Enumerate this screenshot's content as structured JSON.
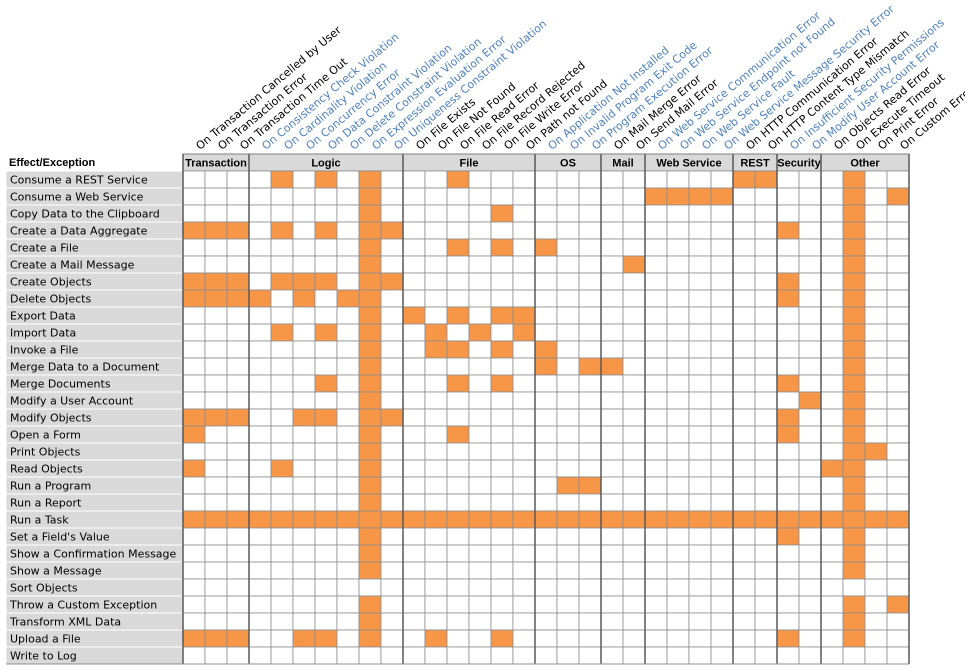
{
  "corner": "Effect/Exception",
  "cell_color": "#f79646",
  "groups": [
    {
      "name": "Transaction",
      "columns": [
        {
          "label": "On Transaction Cancelled by User",
          "color": "#000000"
        },
        {
          "label": "On Transaction Error",
          "color": "#000000"
        },
        {
          "label": "On Transaction Time Out",
          "color": "#000000"
        }
      ]
    },
    {
      "name": "Logic",
      "columns": [
        {
          "label": "On Consistency Check Violation",
          "color": "#4f81bd"
        },
        {
          "label": "On Cardinality Violation",
          "color": "#4f81bd"
        },
        {
          "label": "On Concurrency Error",
          "color": "#4f81bd"
        },
        {
          "label": "On Data Constraint Violation",
          "color": "#4f81bd"
        },
        {
          "label": "On Delete Constraint Violation",
          "color": "#4f81bd"
        },
        {
          "label": "On Expression Evaluation Error",
          "color": "#4f81bd"
        },
        {
          "label": "On Uniqueness Constraint Violation",
          "color": "#4f81bd"
        }
      ]
    },
    {
      "name": "File",
      "columns": [
        {
          "label": "On File Exists",
          "color": "#000000"
        },
        {
          "label": "On File Not Found",
          "color": "#000000"
        },
        {
          "label": "On File Read Error",
          "color": "#000000"
        },
        {
          "label": "On File Record Rejected",
          "color": "#000000"
        },
        {
          "label": "On File Write Error",
          "color": "#000000"
        },
        {
          "label": "On Path not Found",
          "color": "#000000"
        }
      ]
    },
    {
      "name": "OS",
      "columns": [
        {
          "label": "On Application Not Installed",
          "color": "#4f81bd"
        },
        {
          "label": "On Invalid Program Exit Code",
          "color": "#4f81bd"
        },
        {
          "label": "On Program Execution Error",
          "color": "#4f81bd"
        }
      ]
    },
    {
      "name": "Mail",
      "columns": [
        {
          "label": "On Mail Merge Error",
          "color": "#000000"
        },
        {
          "label": "On Send Mail Error",
          "color": "#000000"
        }
      ]
    },
    {
      "name": "Web Service",
      "columns": [
        {
          "label": "On Web Service Communication Error",
          "color": "#4f81bd"
        },
        {
          "label": "On Web Service Endpoint not Found",
          "color": "#4f81bd"
        },
        {
          "label": "On Web Service Fault",
          "color": "#4f81bd"
        },
        {
          "label": "On Web Service Message Security Error",
          "color": "#4f81bd"
        }
      ]
    },
    {
      "name": "REST",
      "columns": [
        {
          "label": "On HTTP Communication Error",
          "color": "#000000"
        },
        {
          "label": "On HTTP Content Type Mismatch",
          "color": "#000000"
        }
      ]
    },
    {
      "name": "Security",
      "columns": [
        {
          "label": "On Insufficient Security Permissions",
          "color": "#4f81bd"
        },
        {
          "label": "On Modify User Account Error",
          "color": "#4f81bd"
        }
      ]
    },
    {
      "name": "Other",
      "columns": [
        {
          "label": "On Objects Read Error",
          "color": "#000000"
        },
        {
          "label": "On Execute Timeout",
          "color": "#000000"
        },
        {
          "label": "On Print Error",
          "color": "#000000"
        },
        {
          "label": "On Custom Error",
          "color": "#000000"
        }
      ]
    }
  ],
  "rows": [
    {
      "label": "Consume a REST Service",
      "cells": [
        0,
        0,
        0,
        0,
        1,
        0,
        1,
        0,
        1,
        0,
        0,
        0,
        1,
        0,
        0,
        0,
        0,
        0,
        0,
        0,
        0,
        0,
        0,
        0,
        0,
        1,
        1,
        0,
        0,
        0,
        1,
        0,
        0
      ]
    },
    {
      "label": "Consume a Web Service",
      "cells": [
        0,
        0,
        0,
        0,
        0,
        0,
        0,
        0,
        1,
        0,
        0,
        0,
        0,
        0,
        0,
        0,
        0,
        0,
        0,
        0,
        0,
        1,
        1,
        1,
        1,
        0,
        0,
        0,
        0,
        0,
        1,
        0,
        1
      ]
    },
    {
      "label": "Copy Data to the Clipboard",
      "cells": [
        0,
        0,
        0,
        0,
        0,
        0,
        0,
        0,
        1,
        0,
        0,
        0,
        0,
        0,
        1,
        0,
        0,
        0,
        0,
        0,
        0,
        0,
        0,
        0,
        0,
        0,
        0,
        0,
        0,
        0,
        1,
        0,
        0
      ]
    },
    {
      "label": "Create a Data Aggregate",
      "cells": [
        1,
        1,
        1,
        0,
        1,
        0,
        1,
        0,
        1,
        1,
        0,
        0,
        0,
        0,
        0,
        0,
        0,
        0,
        0,
        0,
        0,
        0,
        0,
        0,
        0,
        0,
        0,
        1,
        0,
        0,
        1,
        0,
        0
      ]
    },
    {
      "label": "Create a File",
      "cells": [
        0,
        0,
        0,
        0,
        0,
        0,
        0,
        0,
        1,
        0,
        0,
        0,
        1,
        0,
        1,
        0,
        1,
        0,
        0,
        0,
        0,
        0,
        0,
        0,
        0,
        0,
        0,
        0,
        0,
        0,
        1,
        0,
        0
      ]
    },
    {
      "label": "Create a Mail Message",
      "cells": [
        0,
        0,
        0,
        0,
        0,
        0,
        0,
        0,
        1,
        0,
        0,
        0,
        0,
        0,
        0,
        0,
        0,
        0,
        0,
        0,
        1,
        0,
        0,
        0,
        0,
        0,
        0,
        0,
        0,
        0,
        1,
        0,
        0
      ]
    },
    {
      "label": "Create Objects",
      "cells": [
        1,
        1,
        1,
        0,
        1,
        1,
        1,
        0,
        1,
        1,
        0,
        0,
        0,
        0,
        0,
        0,
        0,
        0,
        0,
        0,
        0,
        0,
        0,
        0,
        0,
        0,
        0,
        1,
        0,
        0,
        1,
        0,
        0
      ]
    },
    {
      "label": "Delete Objects",
      "cells": [
        1,
        1,
        1,
        1,
        0,
        1,
        0,
        1,
        1,
        0,
        0,
        0,
        0,
        0,
        0,
        0,
        0,
        0,
        0,
        0,
        0,
        0,
        0,
        0,
        0,
        0,
        0,
        1,
        0,
        0,
        1,
        0,
        0
      ]
    },
    {
      "label": "Export Data",
      "cells": [
        0,
        0,
        0,
        0,
        0,
        0,
        0,
        0,
        1,
        0,
        1,
        0,
        1,
        0,
        1,
        1,
        0,
        0,
        0,
        0,
        0,
        0,
        0,
        0,
        0,
        0,
        0,
        0,
        0,
        0,
        1,
        0,
        0
      ]
    },
    {
      "label": "Import Data",
      "cells": [
        0,
        0,
        0,
        0,
        1,
        0,
        1,
        0,
        1,
        0,
        0,
        1,
        0,
        1,
        0,
        1,
        0,
        0,
        0,
        0,
        0,
        0,
        0,
        0,
        0,
        0,
        0,
        0,
        0,
        0,
        1,
        0,
        0
      ]
    },
    {
      "label": "Invoke a File",
      "cells": [
        0,
        0,
        0,
        0,
        0,
        0,
        0,
        0,
        1,
        0,
        0,
        1,
        1,
        0,
        1,
        0,
        1,
        0,
        0,
        0,
        0,
        0,
        0,
        0,
        0,
        0,
        0,
        0,
        0,
        0,
        1,
        0,
        0
      ]
    },
    {
      "label": "Merge Data to a Document",
      "cells": [
        0,
        0,
        0,
        0,
        0,
        0,
        0,
        0,
        1,
        0,
        0,
        0,
        0,
        0,
        0,
        0,
        1,
        0,
        1,
        1,
        0,
        0,
        0,
        0,
        0,
        0,
        0,
        0,
        0,
        0,
        1,
        0,
        0
      ]
    },
    {
      "label": "Merge Documents",
      "cells": [
        0,
        0,
        0,
        0,
        0,
        0,
        1,
        0,
        1,
        0,
        0,
        0,
        1,
        0,
        1,
        0,
        0,
        0,
        0,
        0,
        0,
        0,
        0,
        0,
        0,
        0,
        0,
        1,
        0,
        0,
        1,
        0,
        0
      ]
    },
    {
      "label": "Modify a User Account",
      "cells": [
        0,
        0,
        0,
        0,
        0,
        0,
        0,
        0,
        1,
        0,
        0,
        0,
        0,
        0,
        0,
        0,
        0,
        0,
        0,
        0,
        0,
        0,
        0,
        0,
        0,
        0,
        0,
        0,
        1,
        0,
        1,
        0,
        0
      ]
    },
    {
      "label": "Modify Objects",
      "cells": [
        1,
        1,
        1,
        0,
        0,
        1,
        1,
        0,
        1,
        1,
        0,
        0,
        0,
        0,
        0,
        0,
        0,
        0,
        0,
        0,
        0,
        0,
        0,
        0,
        0,
        0,
        0,
        1,
        0,
        0,
        1,
        0,
        0
      ]
    },
    {
      "label": "Open a Form",
      "cells": [
        1,
        0,
        0,
        0,
        0,
        0,
        0,
        0,
        1,
        0,
        0,
        0,
        1,
        0,
        0,
        0,
        0,
        0,
        0,
        0,
        0,
        0,
        0,
        0,
        0,
        0,
        0,
        1,
        0,
        0,
        1,
        0,
        0
      ]
    },
    {
      "label": "Print Objects",
      "cells": [
        0,
        0,
        0,
        0,
        0,
        0,
        0,
        0,
        1,
        0,
        0,
        0,
        0,
        0,
        0,
        0,
        0,
        0,
        0,
        0,
        0,
        0,
        0,
        0,
        0,
        0,
        0,
        0,
        0,
        0,
        1,
        1,
        0
      ]
    },
    {
      "label": "Read Objects",
      "cells": [
        1,
        0,
        0,
        0,
        1,
        0,
        0,
        0,
        1,
        0,
        0,
        0,
        0,
        0,
        0,
        0,
        0,
        0,
        0,
        0,
        0,
        0,
        0,
        0,
        0,
        0,
        0,
        0,
        0,
        1,
        1,
        0,
        0
      ]
    },
    {
      "label": "Run a Program",
      "cells": [
        0,
        0,
        0,
        0,
        0,
        0,
        0,
        0,
        1,
        0,
        0,
        0,
        0,
        0,
        0,
        0,
        0,
        1,
        1,
        0,
        0,
        0,
        0,
        0,
        0,
        0,
        0,
        0,
        0,
        0,
        1,
        0,
        0
      ]
    },
    {
      "label": "Run a Report",
      "cells": [
        0,
        0,
        0,
        0,
        0,
        0,
        0,
        0,
        1,
        0,
        0,
        0,
        0,
        0,
        0,
        0,
        0,
        0,
        0,
        0,
        0,
        0,
        0,
        0,
        0,
        0,
        0,
        0,
        0,
        0,
        1,
        0,
        0
      ]
    },
    {
      "label": "Run a Task",
      "cells": [
        1,
        1,
        1,
        1,
        1,
        1,
        1,
        1,
        1,
        1,
        1,
        1,
        1,
        1,
        1,
        1,
        1,
        1,
        1,
        1,
        1,
        1,
        1,
        1,
        1,
        1,
        1,
        1,
        1,
        1,
        1,
        1,
        1
      ]
    },
    {
      "label": "Set a Field's Value",
      "cells": [
        0,
        0,
        0,
        0,
        0,
        0,
        0,
        0,
        1,
        0,
        0,
        0,
        0,
        0,
        0,
        0,
        0,
        0,
        0,
        0,
        0,
        0,
        0,
        0,
        0,
        0,
        0,
        1,
        0,
        0,
        1,
        0,
        0
      ]
    },
    {
      "label": "Show a Confirmation Message",
      "cells": [
        0,
        0,
        0,
        0,
        0,
        0,
        0,
        0,
        1,
        0,
        0,
        0,
        0,
        0,
        0,
        0,
        0,
        0,
        0,
        0,
        0,
        0,
        0,
        0,
        0,
        0,
        0,
        0,
        0,
        0,
        1,
        0,
        0
      ]
    },
    {
      "label": "Show a Message",
      "cells": [
        0,
        0,
        0,
        0,
        0,
        0,
        0,
        0,
        1,
        0,
        0,
        0,
        0,
        0,
        0,
        0,
        0,
        0,
        0,
        0,
        0,
        0,
        0,
        0,
        0,
        0,
        0,
        0,
        0,
        0,
        1,
        0,
        0
      ]
    },
    {
      "label": "Sort Objects",
      "cells": [
        0,
        0,
        0,
        0,
        0,
        0,
        0,
        0,
        0,
        0,
        0,
        0,
        0,
        0,
        0,
        0,
        0,
        0,
        0,
        0,
        0,
        0,
        0,
        0,
        0,
        0,
        0,
        0,
        0,
        0,
        0,
        0,
        0
      ]
    },
    {
      "label": "Throw a Custom Exception",
      "cells": [
        0,
        0,
        0,
        0,
        0,
        0,
        0,
        0,
        1,
        0,
        0,
        0,
        0,
        0,
        0,
        0,
        0,
        0,
        0,
        0,
        0,
        0,
        0,
        0,
        0,
        0,
        0,
        0,
        0,
        0,
        1,
        0,
        1
      ]
    },
    {
      "label": "Transform XML Data",
      "cells": [
        0,
        0,
        0,
        0,
        0,
        0,
        0,
        0,
        1,
        0,
        0,
        0,
        0,
        0,
        0,
        0,
        0,
        0,
        0,
        0,
        0,
        0,
        0,
        0,
        0,
        0,
        0,
        0,
        0,
        0,
        1,
        0,
        0
      ]
    },
    {
      "label": "Upload a File",
      "cells": [
        1,
        1,
        1,
        0,
        0,
        1,
        1,
        0,
        1,
        0,
        0,
        1,
        0,
        0,
        1,
        0,
        0,
        0,
        0,
        0,
        0,
        0,
        0,
        0,
        0,
        0,
        0,
        1,
        0,
        0,
        1,
        0,
        0
      ]
    },
    {
      "label": "Write to Log",
      "cells": [
        0,
        0,
        0,
        0,
        0,
        0,
        0,
        0,
        0,
        0,
        0,
        0,
        0,
        0,
        0,
        0,
        0,
        0,
        0,
        0,
        0,
        0,
        0,
        0,
        0,
        0,
        0,
        0,
        0,
        0,
        0,
        0,
        0
      ]
    }
  ]
}
